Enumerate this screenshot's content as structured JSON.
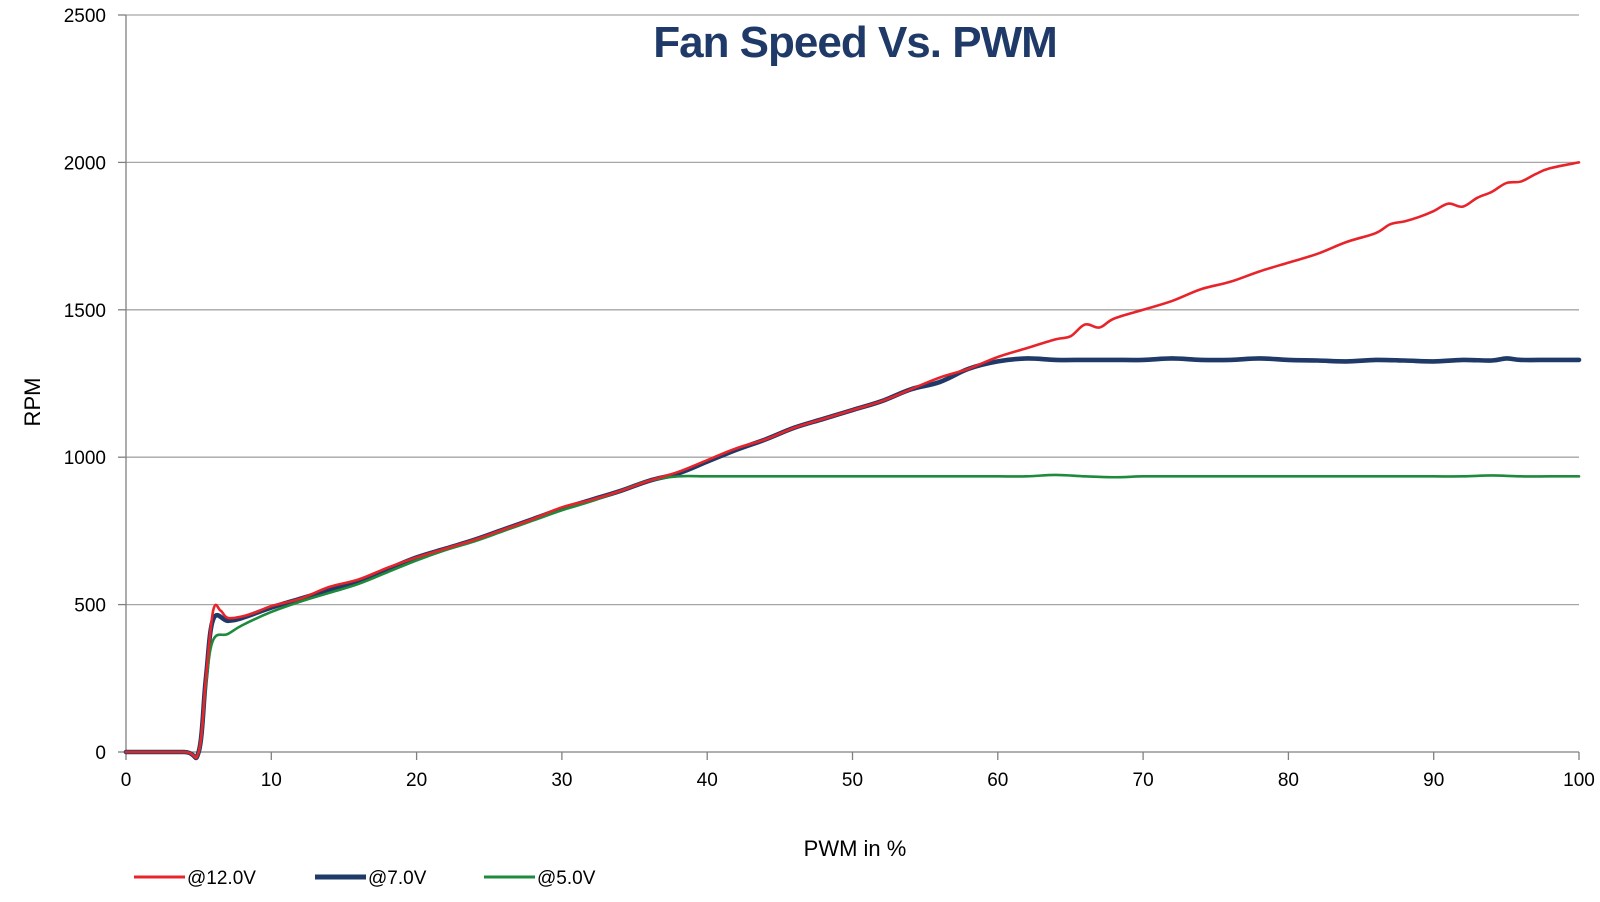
{
  "chart_data": {
    "type": "line",
    "title": "Fan Speed Vs. PWM",
    "xlabel": "PWM in %",
    "ylabel": "RPM",
    "xlim": [
      0,
      100
    ],
    "ylim": [
      0,
      2500
    ],
    "x_ticks": [
      "0",
      "10",
      "20",
      "30",
      "40",
      "50",
      "60",
      "70",
      "80",
      "90",
      "100"
    ],
    "y_ticks": [
      "0",
      "500",
      "1000",
      "1500",
      "2000",
      "2500"
    ],
    "grid": "horizontal",
    "legend_position": "bottom-left",
    "series": [
      {
        "name": "@12.0V",
        "color": "#e8242b",
        "points": [
          [
            0,
            0
          ],
          [
            4,
            0
          ],
          [
            5,
            0
          ],
          [
            5.5,
            250
          ],
          [
            6,
            480
          ],
          [
            6.5,
            480
          ],
          [
            7,
            455
          ],
          [
            8,
            460
          ],
          [
            9,
            475
          ],
          [
            10,
            495
          ],
          [
            12,
            520
          ],
          [
            14,
            560
          ],
          [
            16,
            585
          ],
          [
            18,
            625
          ],
          [
            20,
            660
          ],
          [
            22,
            690
          ],
          [
            24,
            720
          ],
          [
            26,
            755
          ],
          [
            28,
            790
          ],
          [
            30,
            830
          ],
          [
            32,
            855
          ],
          [
            34,
            885
          ],
          [
            36,
            920
          ],
          [
            38,
            950
          ],
          [
            40,
            990
          ],
          [
            42,
            1030
          ],
          [
            44,
            1060
          ],
          [
            46,
            1100
          ],
          [
            48,
            1130
          ],
          [
            50,
            1160
          ],
          [
            52,
            1190
          ],
          [
            54,
            1230
          ],
          [
            56,
            1270
          ],
          [
            58,
            1300
          ],
          [
            60,
            1340
          ],
          [
            62,
            1370
          ],
          [
            64,
            1400
          ],
          [
            65,
            1410
          ],
          [
            66,
            1450
          ],
          [
            67,
            1440
          ],
          [
            68,
            1470
          ],
          [
            70,
            1500
          ],
          [
            72,
            1530
          ],
          [
            74,
            1570
          ],
          [
            76,
            1595
          ],
          [
            78,
            1630
          ],
          [
            80,
            1660
          ],
          [
            82,
            1690
          ],
          [
            84,
            1730
          ],
          [
            86,
            1760
          ],
          [
            87,
            1790
          ],
          [
            88,
            1800
          ],
          [
            89,
            1815
          ],
          [
            90,
            1835
          ],
          [
            91,
            1860
          ],
          [
            92,
            1850
          ],
          [
            93,
            1880
          ],
          [
            94,
            1900
          ],
          [
            95,
            1930
          ],
          [
            96,
            1935
          ],
          [
            97,
            1960
          ],
          [
            98,
            1980
          ],
          [
            100,
            2000
          ]
        ]
      },
      {
        "name": "@7.0V",
        "color": "#1f3a68",
        "points": [
          [
            0,
            0
          ],
          [
            4,
            0
          ],
          [
            5,
            0
          ],
          [
            5.5,
            250
          ],
          [
            6,
            450
          ],
          [
            7,
            445
          ],
          [
            8,
            455
          ],
          [
            10,
            490
          ],
          [
            12,
            520
          ],
          [
            14,
            550
          ],
          [
            16,
            580
          ],
          [
            18,
            620
          ],
          [
            20,
            660
          ],
          [
            22,
            690
          ],
          [
            24,
            720
          ],
          [
            26,
            755
          ],
          [
            28,
            790
          ],
          [
            30,
            825
          ],
          [
            32,
            855
          ],
          [
            34,
            885
          ],
          [
            36,
            920
          ],
          [
            38,
            945
          ],
          [
            40,
            985
          ],
          [
            42,
            1025
          ],
          [
            44,
            1060
          ],
          [
            46,
            1100
          ],
          [
            48,
            1130
          ],
          [
            50,
            1160
          ],
          [
            52,
            1190
          ],
          [
            54,
            1230
          ],
          [
            56,
            1255
          ],
          [
            58,
            1300
          ],
          [
            60,
            1325
          ],
          [
            62,
            1335
          ],
          [
            64,
            1330
          ],
          [
            66,
            1330
          ],
          [
            68,
            1330
          ],
          [
            70,
            1330
          ],
          [
            72,
            1335
          ],
          [
            74,
            1330
          ],
          [
            76,
            1330
          ],
          [
            78,
            1335
          ],
          [
            80,
            1330
          ],
          [
            82,
            1328
          ],
          [
            84,
            1325
          ],
          [
            86,
            1330
          ],
          [
            88,
            1328
          ],
          [
            90,
            1325
          ],
          [
            92,
            1330
          ],
          [
            94,
            1328
          ],
          [
            95,
            1335
          ],
          [
            96,
            1330
          ],
          [
            98,
            1330
          ],
          [
            100,
            1330
          ]
        ]
      },
      {
        "name": "@5.0V",
        "color": "#1e8a3c",
        "points": [
          [
            0,
            0
          ],
          [
            4,
            0
          ],
          [
            5,
            0
          ],
          [
            5.5,
            230
          ],
          [
            6,
            380
          ],
          [
            7,
            400
          ],
          [
            8,
            430
          ],
          [
            10,
            475
          ],
          [
            12,
            510
          ],
          [
            14,
            540
          ],
          [
            16,
            570
          ],
          [
            18,
            610
          ],
          [
            20,
            650
          ],
          [
            22,
            685
          ],
          [
            24,
            715
          ],
          [
            26,
            750
          ],
          [
            28,
            785
          ],
          [
            30,
            820
          ],
          [
            32,
            850
          ],
          [
            34,
            885
          ],
          [
            36,
            920
          ],
          [
            38,
            935
          ],
          [
            40,
            935
          ],
          [
            42,
            935
          ],
          [
            44,
            935
          ],
          [
            46,
            935
          ],
          [
            48,
            935
          ],
          [
            50,
            935
          ],
          [
            52,
            935
          ],
          [
            54,
            935
          ],
          [
            56,
            935
          ],
          [
            58,
            935
          ],
          [
            60,
            935
          ],
          [
            62,
            935
          ],
          [
            64,
            940
          ],
          [
            66,
            935
          ],
          [
            68,
            932
          ],
          [
            70,
            935
          ],
          [
            72,
            935
          ],
          [
            74,
            935
          ],
          [
            76,
            935
          ],
          [
            78,
            935
          ],
          [
            80,
            935
          ],
          [
            82,
            935
          ],
          [
            84,
            935
          ],
          [
            86,
            935
          ],
          [
            88,
            935
          ],
          [
            90,
            935
          ],
          [
            92,
            935
          ],
          [
            94,
            938
          ],
          [
            96,
            935
          ],
          [
            98,
            935
          ],
          [
            100,
            935
          ]
        ]
      }
    ]
  }
}
